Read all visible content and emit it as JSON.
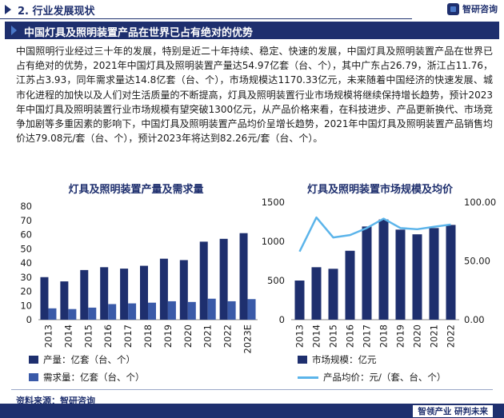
{
  "section": {
    "title": "2. 行业发展现状"
  },
  "brand": {
    "logo_text": "智研咨询",
    "slogan": "智领产业 研判未来"
  },
  "banner": {
    "title": "中国灯具及照明装置产品在世界已占有绝对的优势"
  },
  "paragraph": "中国照明行业经过三十年的发展，特别是近二十年持续、稳定、快速的发展，中国灯具及照明装置产品在世界已占有绝对的优势，2021年中国灯具及照明装置产量达54.97亿套（台、个），其中广东占26.79，浙江占11.76，江苏占3.93，同年需求量达14.8亿套（台、个），市场规模达1170.33亿元，未来随着中国经济的快速发展、城市化进程的加快以及人们对生活质量的不断提高，灯具及照明装置行业市场规模将继续保持增长趋势，预计2023年中国灯具及照明装置行业市场规模有望突破1300亿元，从产品价格来看，在科技进步、产品更新换代、市场竞争加剧等多重因素的影响下，中国灯具及照明装置产品均价呈增长趋势，2021年中国灯具及照明装置产品销售均价达79.08元/套（台、个），预计2023年将达到82.26元/套（台、个）。",
  "source": "资料来源：智研咨询",
  "colors": {
    "navy": "#1e2f6e",
    "blue": "#3a5aa8",
    "line": "#5bb4ea"
  },
  "chart_data": [
    {
      "type": "bar",
      "title": "灯具及照明装置产量及需求量",
      "categories": [
        "2013",
        "2014",
        "2015",
        "2016",
        "2017",
        "2018",
        "2019",
        "2020",
        "2021",
        "2022",
        "2023E"
      ],
      "series": [
        {
          "name": "产量：亿套（台、个）",
          "values": [
            30,
            27,
            35,
            37,
            36,
            38,
            43,
            42,
            55,
            57,
            61
          ]
        },
        {
          "name": "需求量：亿套（台、个）",
          "values": [
            8,
            7.5,
            8.5,
            11,
            11.5,
            12,
            13,
            12.5,
            14.8,
            13,
            14.5
          ]
        }
      ],
      "yticks": [
        "0",
        "10",
        "20",
        "30",
        "40",
        "50",
        "60",
        "70",
        "80"
      ],
      "ylim": [
        0,
        80
      ],
      "legend": "bottom"
    },
    {
      "type": "bar",
      "title": "灯具及照明装置市场规模及均价",
      "categories": [
        "2013",
        "2014",
        "2015",
        "2016",
        "2017",
        "2018",
        "2019",
        "2020",
        "2021",
        "2022"
      ],
      "series": [
        {
          "name": "市场规模：亿元",
          "type": "bar",
          "values": [
            500,
            670,
            650,
            880,
            1190,
            1280,
            1150,
            1090,
            1170,
            1210
          ]
        },
        {
          "name": "产品均价：元/（套、台、个）",
          "type": "line",
          "values": [
            58,
            87,
            70,
            72,
            78,
            86,
            78,
            77,
            79.08,
            81
          ]
        }
      ],
      "yticks_left": [
        "0",
        "500",
        "1000",
        "1500"
      ],
      "yticks_right": [
        "0.00",
        "50.00",
        "100.00"
      ],
      "ylim_left": [
        0,
        1500
      ],
      "ylim_right": [
        0,
        100
      ],
      "legend": "bottom"
    }
  ]
}
